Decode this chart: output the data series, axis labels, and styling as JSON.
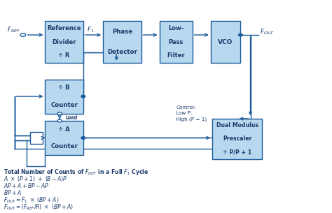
{
  "bg_color": "#ffffff",
  "box_fill": "#b8d8f0",
  "box_edge": "#1a5a9a",
  "arrow_color": "#1a5a9a",
  "text_color": "#1a3a6a",
  "lw": 1.0,
  "ref_div": [
    0.135,
    0.7,
    0.115,
    0.2
  ],
  "phase_det": [
    0.31,
    0.7,
    0.115,
    0.2
  ],
  "lpf": [
    0.48,
    0.7,
    0.1,
    0.2
  ],
  "vco": [
    0.635,
    0.7,
    0.09,
    0.2
  ],
  "b_counter": [
    0.135,
    0.455,
    0.115,
    0.165
  ],
  "a_counter": [
    0.135,
    0.255,
    0.115,
    0.165
  ],
  "prescaler": [
    0.64,
    0.235,
    0.15,
    0.195
  ]
}
